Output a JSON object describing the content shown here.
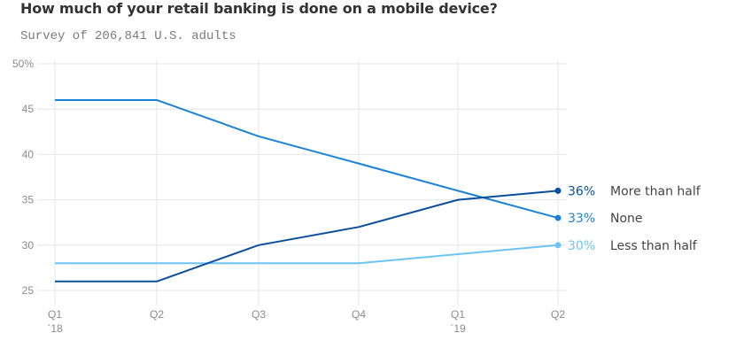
{
  "header": {
    "title": "How much of your retail banking is done on a mobile device?",
    "subtitle": "Survey of 206,841 U.S. adults"
  },
  "chart_data": {
    "type": "line",
    "title": "How much of your retail banking is done on a mobile device?",
    "subtitle": "Survey of 206,841 U.S. adults",
    "xlabel": "",
    "ylabel": "",
    "x": [
      "Q1 2018",
      "Q2 2018",
      "Q3 2018",
      "Q4 2018",
      "Q1 2019",
      "Q2 2019"
    ],
    "x_tick_labels": [
      {
        "line1": "Q1",
        "line2": "`18"
      },
      {
        "line1": "Q2",
        "line2": ""
      },
      {
        "line1": "Q3",
        "line2": ""
      },
      {
        "line1": "Q4",
        "line2": ""
      },
      {
        "line1": "Q1",
        "line2": "`19"
      },
      {
        "line1": "Q2",
        "line2": ""
      }
    ],
    "ylim": [
      25,
      50
    ],
    "y_ticks": [
      25,
      30,
      35,
      40,
      45,
      50
    ],
    "y_tick_labels": [
      "25",
      "30",
      "35",
      "40",
      "45",
      "50%"
    ],
    "grid": true,
    "legend": "end-of-line labels (right)",
    "series": [
      {
        "name": "More than half",
        "values": [
          26,
          26,
          30,
          32,
          35,
          36
        ],
        "end_label": "36%",
        "color": "#0b4f9c"
      },
      {
        "name": "None",
        "values": [
          46,
          46,
          42,
          39,
          36,
          33
        ],
        "end_label": "33%",
        "color": "#1a83d6"
      },
      {
        "name": "Less than half",
        "values": [
          28,
          28,
          28,
          28,
          29,
          30
        ],
        "end_label": "30%",
        "color": "#6cc4f5"
      }
    ]
  }
}
